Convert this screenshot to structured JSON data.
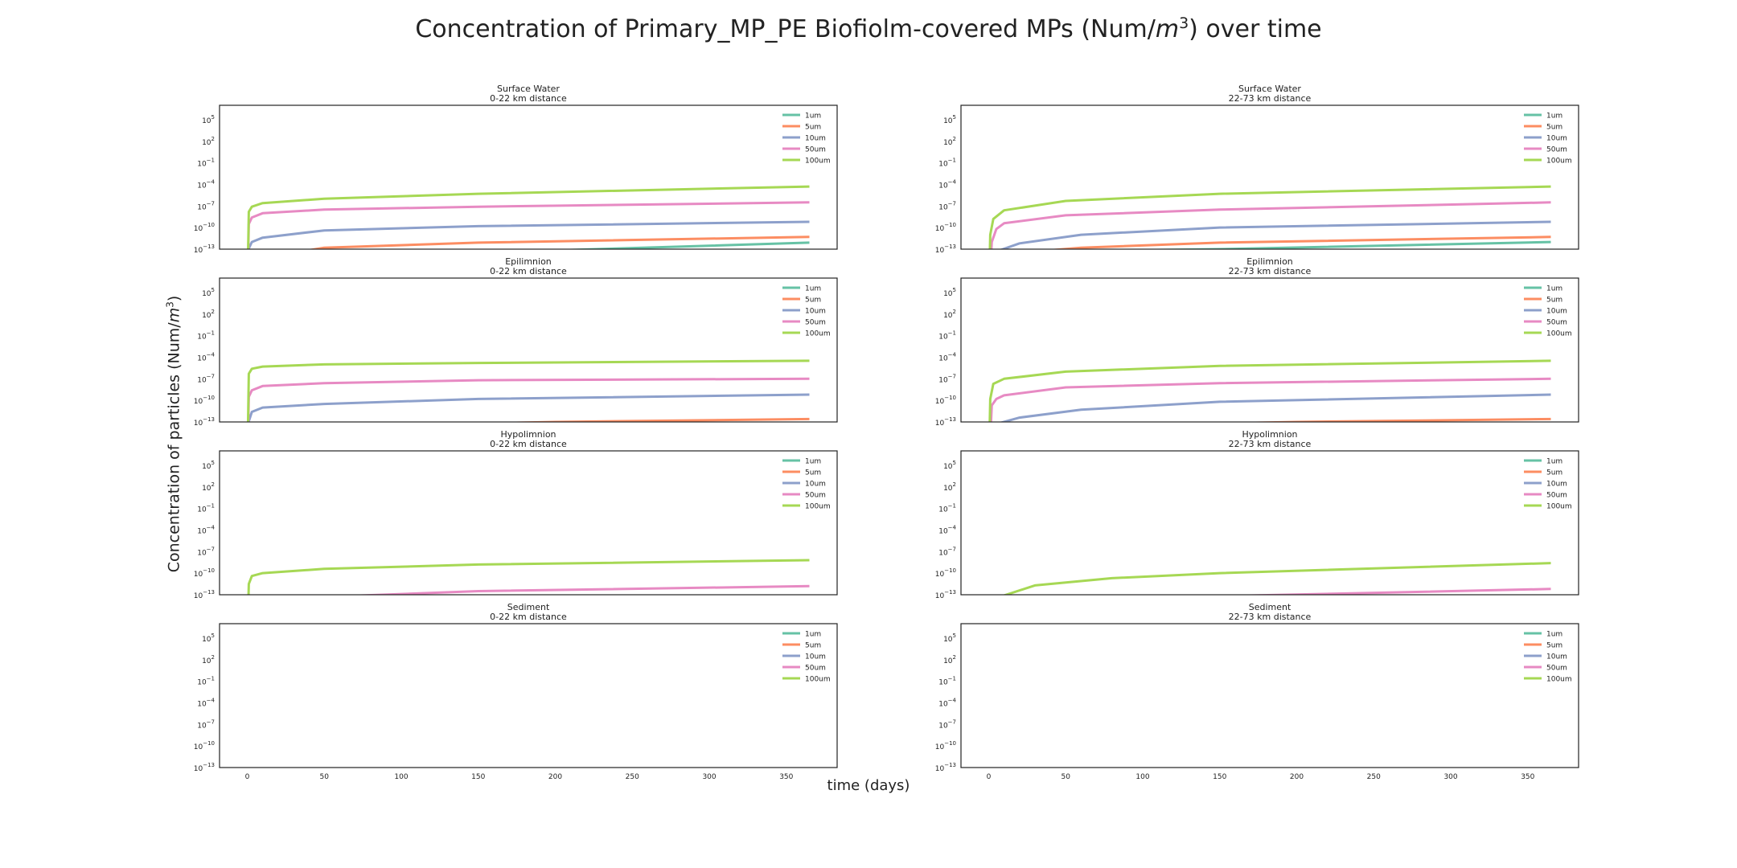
{
  "figure": {
    "title_prefix": "Concentration of Primary_MP_PE Biofiolm-covered MPs (Num/",
    "title_unit": "m",
    "title_exp": "3",
    "title_suffix": ") over time",
    "ylabel_prefix": "Concentration of particles (Num/",
    "ylabel_unit": "m",
    "ylabel_exp": "3",
    "ylabel_suffix": ")",
    "xlabel": "time (days)"
  },
  "colors": {
    "1um": "#66c2a5",
    "5um": "#fc8d62",
    "10um": "#8da0cb",
    "50um": "#e78ac3",
    "100um": "#a6d854"
  },
  "chart_data": {
    "type": "line",
    "y_scale": "log",
    "xlim": [
      -18,
      383
    ],
    "ylim_exp": [
      -13,
      7
    ],
    "x_ticks": [
      0,
      50,
      100,
      150,
      200,
      250,
      300,
      350
    ],
    "y_ticks_exp": [
      -13,
      -10,
      -7,
      -4,
      -1,
      2,
      5
    ],
    "y_tick_base": "10",
    "legend": {
      "placement": "upper-right",
      "entries": [
        "1um",
        "5um",
        "10um",
        "50um",
        "100um"
      ]
    },
    "panels": [
      {
        "compartment": "Surface Water",
        "distance": "0-22 km distance",
        "series": [
          {
            "name": "1um",
            "start_x": 0,
            "points": [
              [
                1,
                -18
              ],
              [
                10,
                -15.5
              ],
              [
                50,
                -14.3
              ],
              [
                150,
                -13.5
              ],
              [
                365,
                -12.1
              ]
            ]
          },
          {
            "name": "5um",
            "start_x": 0,
            "points": [
              [
                1,
                -16
              ],
              [
                10,
                -14.2
              ],
              [
                50,
                -12.8
              ],
              [
                150,
                -12.1
              ],
              [
                365,
                -11.3
              ]
            ]
          },
          {
            "name": "10um",
            "start_x": 0,
            "points": [
              [
                1,
                -12.9
              ],
              [
                3,
                -12
              ],
              [
                10,
                -11.4
              ],
              [
                50,
                -10.4
              ],
              [
                150,
                -9.8
              ],
              [
                365,
                -9.2
              ]
            ]
          },
          {
            "name": "50um",
            "start_x": 0,
            "points": [
              [
                1,
                -9.5
              ],
              [
                3,
                -8.6
              ],
              [
                10,
                -8.0
              ],
              [
                50,
                -7.5
              ],
              [
                150,
                -7.1
              ],
              [
                365,
                -6.5
              ]
            ]
          },
          {
            "name": "100um",
            "start_x": 0,
            "points": [
              [
                1,
                -7.8
              ],
              [
                3,
                -7.1
              ],
              [
                10,
                -6.6
              ],
              [
                50,
                -6.0
              ],
              [
                150,
                -5.3
              ],
              [
                365,
                -4.3
              ]
            ]
          }
        ]
      },
      {
        "compartment": "Surface Water",
        "distance": "22-73 km distance",
        "series": [
          {
            "name": "1um",
            "start_x": 0,
            "points": [
              [
                40,
                -13.3
              ],
              [
                150,
                -13.0
              ],
              [
                365,
                -12.0
              ]
            ]
          },
          {
            "name": "5um",
            "start_x": 0,
            "points": [
              [
                20,
                -13.5
              ],
              [
                60,
                -12.8
              ],
              [
                150,
                -12.1
              ],
              [
                365,
                -11.3
              ]
            ]
          },
          {
            "name": "10um",
            "start_x": 0,
            "points": [
              [
                8,
                -13.1
              ],
              [
                20,
                -12.2
              ],
              [
                60,
                -11.0
              ],
              [
                150,
                -10.0
              ],
              [
                365,
                -9.2
              ]
            ]
          },
          {
            "name": "50um",
            "start_x": 0,
            "points": [
              [
                2,
                -12.0
              ],
              [
                5,
                -10.2
              ],
              [
                10,
                -9.4
              ],
              [
                50,
                -8.3
              ],
              [
                150,
                -7.5
              ],
              [
                365,
                -6.5
              ]
            ]
          },
          {
            "name": "100um",
            "start_x": 0,
            "points": [
              [
                1,
                -11.0
              ],
              [
                3,
                -8.8
              ],
              [
                10,
                -7.6
              ],
              [
                50,
                -6.3
              ],
              [
                150,
                -5.3
              ],
              [
                365,
                -4.3
              ]
            ]
          }
        ]
      },
      {
        "compartment": "Epilimnion",
        "distance": "0-22 km distance",
        "series": [
          {
            "name": "1um",
            "start_x": 0,
            "points": [
              [
                250,
                -13.5
              ],
              [
                365,
                -13.2
              ]
            ]
          },
          {
            "name": "5um",
            "start_x": 0,
            "points": [
              [
                80,
                -13.5
              ],
              [
                200,
                -13.0
              ],
              [
                365,
                -12.6
              ]
            ]
          },
          {
            "name": "10um",
            "start_x": 0,
            "points": [
              [
                1,
                -12.9
              ],
              [
                3,
                -11.6
              ],
              [
                10,
                -11.0
              ],
              [
                50,
                -10.5
              ],
              [
                150,
                -9.8
              ],
              [
                365,
                -9.2
              ]
            ]
          },
          {
            "name": "50um",
            "start_x": 0,
            "points": [
              [
                1,
                -9.5
              ],
              [
                3,
                -8.6
              ],
              [
                10,
                -8.0
              ],
              [
                50,
                -7.6
              ],
              [
                150,
                -7.2
              ],
              [
                365,
                -7.0
              ]
            ]
          },
          {
            "name": "100um",
            "start_x": 0,
            "points": [
              [
                1,
                -6.3
              ],
              [
                3,
                -5.6
              ],
              [
                10,
                -5.3
              ],
              [
                50,
                -5.0
              ],
              [
                150,
                -4.8
              ],
              [
                365,
                -4.5
              ]
            ]
          }
        ]
      },
      {
        "compartment": "Epilimnion",
        "distance": "22-73 km distance",
        "series": [
          {
            "name": "1um",
            "start_x": 0,
            "points": [
              [
                250,
                -13.5
              ],
              [
                365,
                -13.2
              ]
            ]
          },
          {
            "name": "5um",
            "start_x": 0,
            "points": [
              [
                80,
                -13.5
              ],
              [
                200,
                -13.0
              ],
              [
                365,
                -12.6
              ]
            ]
          },
          {
            "name": "10um",
            "start_x": 0,
            "points": [
              [
                8,
                -13.1
              ],
              [
                20,
                -12.4
              ],
              [
                60,
                -11.3
              ],
              [
                150,
                -10.2
              ],
              [
                365,
                -9.2
              ]
            ]
          },
          {
            "name": "50um",
            "start_x": 0,
            "points": [
              [
                2,
                -10.7
              ],
              [
                5,
                -9.8
              ],
              [
                10,
                -9.3
              ],
              [
                50,
                -8.2
              ],
              [
                150,
                -7.6
              ],
              [
                365,
                -7.0
              ]
            ]
          },
          {
            "name": "100um",
            "start_x": 0,
            "points": [
              [
                1,
                -9.8
              ],
              [
                3,
                -7.7
              ],
              [
                10,
                -7.0
              ],
              [
                50,
                -6.0
              ],
              [
                150,
                -5.2
              ],
              [
                365,
                -4.5
              ]
            ]
          }
        ]
      },
      {
        "compartment": "Hypolimnion",
        "distance": "0-22 km distance",
        "series": [
          {
            "name": "1um",
            "start_x": 0,
            "points": []
          },
          {
            "name": "5um",
            "start_x": 0,
            "points": []
          },
          {
            "name": "10um",
            "start_x": 0,
            "points": []
          },
          {
            "name": "50um",
            "start_x": 0,
            "points": [
              [
                50,
                -13.3
              ],
              [
                150,
                -12.5
              ],
              [
                365,
                -11.8
              ]
            ]
          },
          {
            "name": "100um",
            "start_x": 0,
            "points": [
              [
                1,
                -11.5
              ],
              [
                3,
                -10.4
              ],
              [
                10,
                -10.0
              ],
              [
                50,
                -9.4
              ],
              [
                150,
                -8.8
              ],
              [
                365,
                -8.2
              ]
            ]
          }
        ]
      },
      {
        "compartment": "Hypolimnion",
        "distance": "22-73 km distance",
        "series": [
          {
            "name": "1um",
            "start_x": 0,
            "points": []
          },
          {
            "name": "5um",
            "start_x": 0,
            "points": []
          },
          {
            "name": "10um",
            "start_x": 0,
            "points": []
          },
          {
            "name": "50um",
            "start_x": 0,
            "points": [
              [
                150,
                -13.2
              ],
              [
                365,
                -12.2
              ]
            ]
          },
          {
            "name": "100um",
            "start_x": 0,
            "points": [
              [
                10,
                -13.1
              ],
              [
                30,
                -11.7
              ],
              [
                80,
                -10.7
              ],
              [
                150,
                -10.0
              ],
              [
                365,
                -8.6
              ]
            ]
          }
        ]
      },
      {
        "compartment": "Sediment",
        "distance": "0-22 km distance",
        "series": [
          {
            "name": "1um",
            "start_x": 0,
            "points": []
          },
          {
            "name": "5um",
            "start_x": 0,
            "points": []
          },
          {
            "name": "10um",
            "start_x": 0,
            "points": []
          },
          {
            "name": "50um",
            "start_x": 0,
            "points": []
          },
          {
            "name": "100um",
            "start_x": 0,
            "points": []
          }
        ]
      },
      {
        "compartment": "Sediment",
        "distance": "22-73 km distance",
        "series": [
          {
            "name": "1um",
            "start_x": 0,
            "points": []
          },
          {
            "name": "5um",
            "start_x": 0,
            "points": []
          },
          {
            "name": "10um",
            "start_x": 0,
            "points": []
          },
          {
            "name": "50um",
            "start_x": 0,
            "points": []
          },
          {
            "name": "100um",
            "start_x": 0,
            "points": []
          }
        ]
      }
    ]
  }
}
